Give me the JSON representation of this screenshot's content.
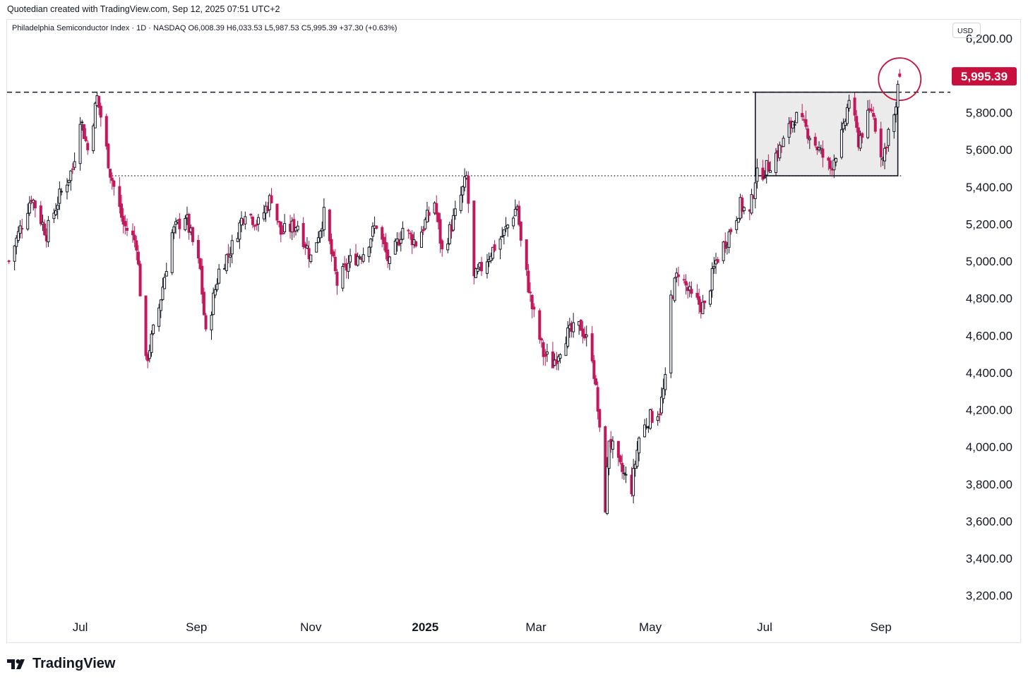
{
  "header": {
    "credit": "Quotedian created with TradingView.com, Sep 12, 2025 07:51 UTC+2",
    "symbol_line": "Philadelphia Semiconductor Index · 1D · NASDAQ  O6,008.39  H6,033.53  L5,987.53  C5,995.39  +37.30 (+0.63%)",
    "currency": "USD"
  },
  "footer": {
    "brand": "TradingView"
  },
  "colors": {
    "up": "#131722",
    "down": "#c2185b",
    "last_price_bg": "#c8103e",
    "marker": "#c8103e"
  },
  "chart_data": {
    "type": "candlestick",
    "title": "Philadelphia Semiconductor Index",
    "interval": "1D",
    "exchange": "NASDAQ",
    "ohlc": {
      "open": 6008.39,
      "high": 6033.53,
      "low": 5987.53,
      "close": 5995.39,
      "change": 37.3,
      "change_pct": 0.63
    },
    "last_price": 5995.39,
    "last_price_label": "5,995.39",
    "ylim": [
      3100,
      6300
    ],
    "y_ticks": [
      {
        "value": 6200,
        "label": "6,200.00"
      },
      {
        "value": 6000,
        "label": ""
      },
      {
        "value": 5800,
        "label": "5,800.00"
      },
      {
        "value": 5600,
        "label": "5,600.00"
      },
      {
        "value": 5400,
        "label": "5,400.00"
      },
      {
        "value": 5200,
        "label": "5,200.00"
      },
      {
        "value": 5000,
        "label": "5,000.00"
      },
      {
        "value": 4800,
        "label": "4,800.00"
      },
      {
        "value": 4600,
        "label": "4,600.00"
      },
      {
        "value": 4400,
        "label": "4,400.00"
      },
      {
        "value": 4200,
        "label": "4,200.00"
      },
      {
        "value": 4000,
        "label": "4,000.00"
      },
      {
        "value": 3800,
        "label": "3,800.00"
      },
      {
        "value": 3600,
        "label": "3,600.00"
      },
      {
        "value": 3400,
        "label": "3,400.00"
      },
      {
        "value": 3200,
        "label": "3,200.00"
      }
    ],
    "x_ticks": [
      {
        "label": "Jul",
        "date": "2024-07-01",
        "bold": false
      },
      {
        "label": "Sep",
        "date": "2024-09-01",
        "bold": false
      },
      {
        "label": "Nov",
        "date": "2024-11-01",
        "bold": false
      },
      {
        "label": "2025",
        "date": "2025-01-01",
        "bold": true
      },
      {
        "label": "Mar",
        "date": "2025-03-01",
        "bold": false
      },
      {
        "label": "May",
        "date": "2025-05-01",
        "bold": false
      },
      {
        "label": "Jul",
        "date": "2025-07-01",
        "bold": false
      },
      {
        "label": "Sep",
        "date": "2025-09-01",
        "bold": false
      }
    ],
    "x_range": [
      "2024-05-23",
      "2025-10-08"
    ],
    "close_path": [
      [
        "2024-05-24",
        5000
      ],
      [
        "2024-06-05",
        5350
      ],
      [
        "2024-06-13",
        5150
      ],
      [
        "2024-06-20",
        5350
      ],
      [
        "2024-06-27",
        5500
      ],
      [
        "2024-07-01",
        5780
      ],
      [
        "2024-07-05",
        5600
      ],
      [
        "2024-07-10",
        5880
      ],
      [
        "2024-07-12",
        5780
      ],
      [
        "2024-07-17",
        5480
      ],
      [
        "2024-07-24",
        5200
      ],
      [
        "2024-07-31",
        5100
      ],
      [
        "2024-08-05",
        4450
      ],
      [
        "2024-08-12",
        4750
      ],
      [
        "2024-08-19",
        5150
      ],
      [
        "2024-08-26",
        5250
      ],
      [
        "2024-09-03",
        4950
      ],
      [
        "2024-09-06",
        4600
      ],
      [
        "2024-09-13",
        4950
      ],
      [
        "2024-09-20",
        5080
      ],
      [
        "2024-09-27",
        5280
      ],
      [
        "2024-10-04",
        5200
      ],
      [
        "2024-10-11",
        5350
      ],
      [
        "2024-10-16",
        5150
      ],
      [
        "2024-10-25",
        5200
      ],
      [
        "2024-11-01",
        5020
      ],
      [
        "2024-11-08",
        5250
      ],
      [
        "2024-11-15",
        4880
      ],
      [
        "2024-11-22",
        5000
      ],
      [
        "2024-11-29",
        5050
      ],
      [
        "2024-12-06",
        5200
      ],
      [
        "2024-12-13",
        4980
      ],
      [
        "2024-12-20",
        5180
      ],
      [
        "2024-12-27",
        5100
      ],
      [
        "2025-01-06",
        5320
      ],
      [
        "2025-01-10",
        5050
      ],
      [
        "2025-01-17",
        5250
      ],
      [
        "2025-01-23",
        5450
      ],
      [
        "2025-01-27",
        4900
      ],
      [
        "2025-02-05",
        5050
      ],
      [
        "2025-02-12",
        5150
      ],
      [
        "2025-02-19",
        5300
      ],
      [
        "2025-02-21",
        5100
      ],
      [
        "2025-02-27",
        4750
      ],
      [
        "2025-03-05",
        4500
      ],
      [
        "2025-03-10",
        4450
      ],
      [
        "2025-03-17",
        4600
      ],
      [
        "2025-03-25",
        4650
      ],
      [
        "2025-03-31",
        4500
      ],
      [
        "2025-04-03",
        4200
      ],
      [
        "2025-04-07",
        3680
      ],
      [
        "2025-04-09",
        4050
      ],
      [
        "2025-04-14",
        3900
      ],
      [
        "2025-04-21",
        3780
      ],
      [
        "2025-04-25",
        4050
      ],
      [
        "2025-04-30",
        4150
      ],
      [
        "2025-05-06",
        4200
      ],
      [
        "2025-05-09",
        4350
      ],
      [
        "2025-05-12",
        4800
      ],
      [
        "2025-05-16",
        4950
      ],
      [
        "2025-05-23",
        4800
      ],
      [
        "2025-05-30",
        4750
      ],
      [
        "2025-06-05",
        5000
      ],
      [
        "2025-06-12",
        5150
      ],
      [
        "2025-06-18",
        5300
      ],
      [
        "2025-06-23",
        5250
      ],
      [
        "2025-06-26",
        5450
      ],
      [
        "2025-07-02",
        5500
      ],
      [
        "2025-07-10",
        5620
      ],
      [
        "2025-07-17",
        5780
      ],
      [
        "2025-07-24",
        5700
      ],
      [
        "2025-07-31",
        5580
      ],
      [
        "2025-08-05",
        5500
      ],
      [
        "2025-08-12",
        5700
      ],
      [
        "2025-08-15",
        5880
      ],
      [
        "2025-08-20",
        5650
      ],
      [
        "2025-08-27",
        5820
      ],
      [
        "2025-09-02",
        5550
      ],
      [
        "2025-09-05",
        5700
      ],
      [
        "2025-09-09",
        5800
      ],
      [
        "2025-09-10",
        5960
      ],
      [
        "2025-09-11",
        5995
      ]
    ],
    "annotations": {
      "dashed_resistance": 5910,
      "dotted_support": 5460,
      "dotted_support_from": "2024-07-18",
      "range_box": {
        "from": "2025-06-26",
        "to": "2025-09-10",
        "low": 5460,
        "high": 5910
      },
      "breakout_circle_date": "2025-09-11"
    }
  }
}
